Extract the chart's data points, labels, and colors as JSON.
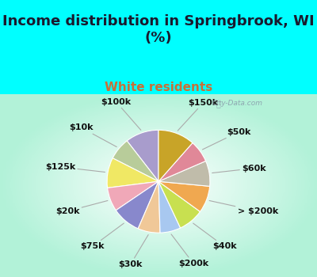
{
  "title": "Income distribution in Springbrook, WI\n(%)",
  "subtitle": "White residents",
  "bg_cyan": "#00FFFF",
  "labels": [
    "$100k",
    "$10k",
    "$125k",
    "$20k",
    "$75k",
    "$30k",
    "$200k",
    "$40k",
    "> $200k",
    "$60k",
    "$50k",
    "$150k"
  ],
  "sizes": [
    10.5,
    7.0,
    9.5,
    7.5,
    9.0,
    7.0,
    6.5,
    8.0,
    8.5,
    8.0,
    7.0,
    11.5
  ],
  "colors": [
    "#a89ccc",
    "#b8cc9a",
    "#f0e864",
    "#f0a8b8",
    "#8888cc",
    "#f0c898",
    "#a8c8f0",
    "#c8e050",
    "#f0a850",
    "#c0bcaa",
    "#e08898",
    "#c8a428"
  ],
  "startangle": 90,
  "title_fontsize": 13,
  "subtitle_fontsize": 11,
  "label_fontsize": 8
}
